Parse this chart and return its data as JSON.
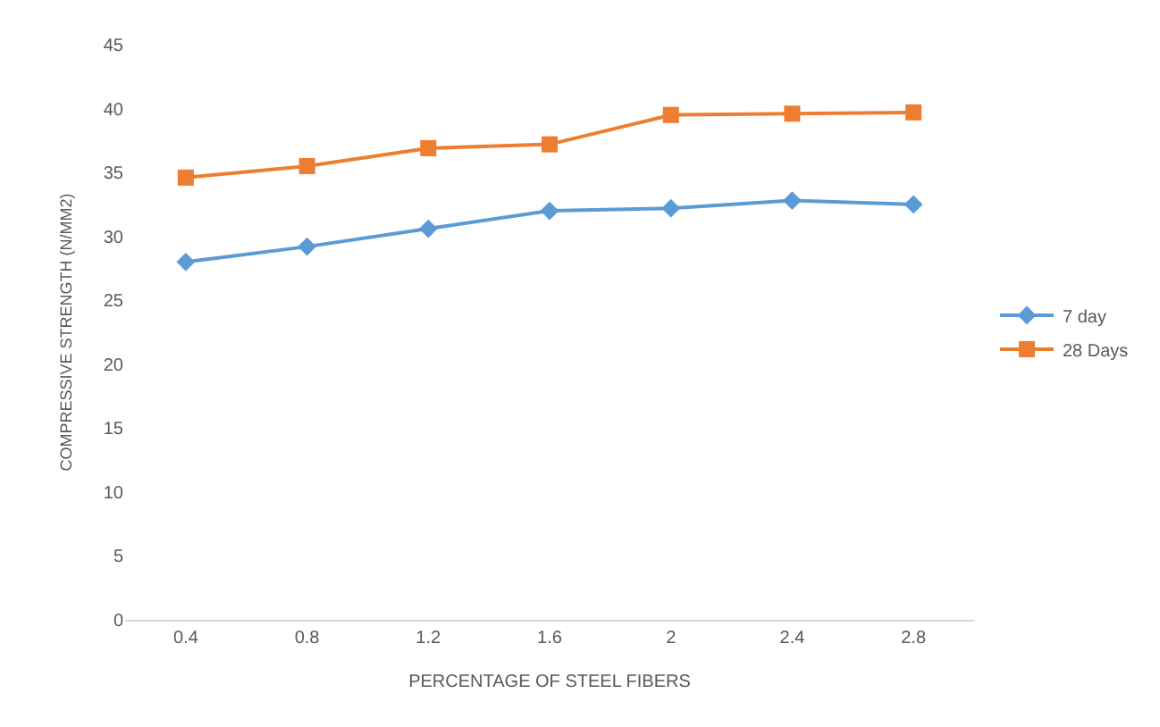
{
  "chart_data": {
    "type": "line",
    "xlabel": "PERCENTAGE OF STEEL FIBERS",
    "ylabel": "COMPRESSIVE STRENGTH (N/MM2)",
    "categories": [
      "0.4",
      "0.8",
      "1.2",
      "1.6",
      "2",
      "2.4",
      "2.8"
    ],
    "series": [
      {
        "name": "7 day",
        "color": "#5b9bd5",
        "marker": "diamond",
        "values": [
          28.0,
          29.2,
          30.6,
          32.0,
          32.2,
          32.8,
          32.5
        ]
      },
      {
        "name": "28 Days",
        "color": "#ed7d31",
        "marker": "square",
        "values": [
          34.6,
          35.5,
          36.9,
          37.2,
          39.5,
          39.6,
          39.7
        ]
      }
    ],
    "ylim": [
      0,
      45
    ],
    "yticks": [
      0,
      5,
      10,
      15,
      20,
      25,
      30,
      35,
      40,
      45
    ],
    "grid": false,
    "legend": "right"
  }
}
